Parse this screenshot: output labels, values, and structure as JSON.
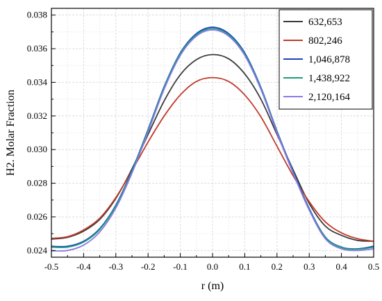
{
  "chart_data": {
    "type": "line",
    "xlabel": "r (m)",
    "ylabel": "H2. Molar Fraction",
    "xlim": [
      -0.5,
      0.5
    ],
    "ylim": [
      0.0236,
      0.0384
    ],
    "x_ticks": [
      "-0.5",
      "-0.4",
      "-0.3",
      "-0.2",
      "-0.1",
      "0.0",
      "0.1",
      "0.2",
      "0.3",
      "0.4",
      "0.5"
    ],
    "y_ticks": [
      "0.024",
      "0.026",
      "0.028",
      "0.030",
      "0.032",
      "0.034",
      "0.036",
      "0.038"
    ],
    "grid": true,
    "legend_position": "top-right",
    "x": [
      -0.5,
      -0.45,
      -0.4,
      -0.35,
      -0.3,
      -0.25,
      -0.2,
      -0.15,
      -0.1,
      -0.05,
      0.0,
      0.05,
      0.1,
      0.15,
      0.2,
      0.25,
      0.3,
      0.35,
      0.4,
      0.45,
      0.5
    ],
    "series": [
      {
        "name": "632,653",
        "color": "#3a3a3a",
        "values": [
          0.02468,
          0.02478,
          0.02515,
          0.02585,
          0.0271,
          0.02885,
          0.0309,
          0.0329,
          0.03445,
          0.03535,
          0.03565,
          0.0354,
          0.0345,
          0.033,
          0.0309,
          0.0288,
          0.0268,
          0.02545,
          0.0249,
          0.0246,
          0.02455
        ]
      },
      {
        "name": "802,246",
        "color": "#c0392b",
        "values": [
          0.02472,
          0.02482,
          0.02522,
          0.02592,
          0.02715,
          0.02875,
          0.03045,
          0.032,
          0.03325,
          0.03405,
          0.03428,
          0.03405,
          0.03325,
          0.03195,
          0.0302,
          0.02845,
          0.0269,
          0.0257,
          0.02505,
          0.0247,
          0.02455
        ]
      },
      {
        "name": "1,046,878",
        "color": "#1f3fbf",
        "values": [
          0.02425,
          0.02425,
          0.02455,
          0.0253,
          0.0267,
          0.02875,
          0.0312,
          0.03375,
          0.03575,
          0.0369,
          0.03728,
          0.0369,
          0.03575,
          0.0337,
          0.0311,
          0.0287,
          0.0265,
          0.0248,
          0.0242,
          0.0241,
          0.02425
        ]
      },
      {
        "name": "1,438,922",
        "color": "#1a9e7a",
        "values": [
          0.0242,
          0.0242,
          0.0245,
          0.02525,
          0.02665,
          0.0287,
          0.03115,
          0.0337,
          0.0357,
          0.03683,
          0.0372,
          0.03683,
          0.03568,
          0.03365,
          0.03105,
          0.02865,
          0.02645,
          0.02478,
          0.02418,
          0.02408,
          0.0242
        ]
      },
      {
        "name": "2,120,164",
        "color": "#8a78e6",
        "values": [
          0.02398,
          0.024,
          0.02432,
          0.0251,
          0.02652,
          0.0286,
          0.03105,
          0.0336,
          0.0356,
          0.03675,
          0.03712,
          0.03675,
          0.0356,
          0.03358,
          0.031,
          0.0286,
          0.0264,
          0.0247,
          0.0241,
          0.024,
          0.0241
        ]
      }
    ]
  }
}
